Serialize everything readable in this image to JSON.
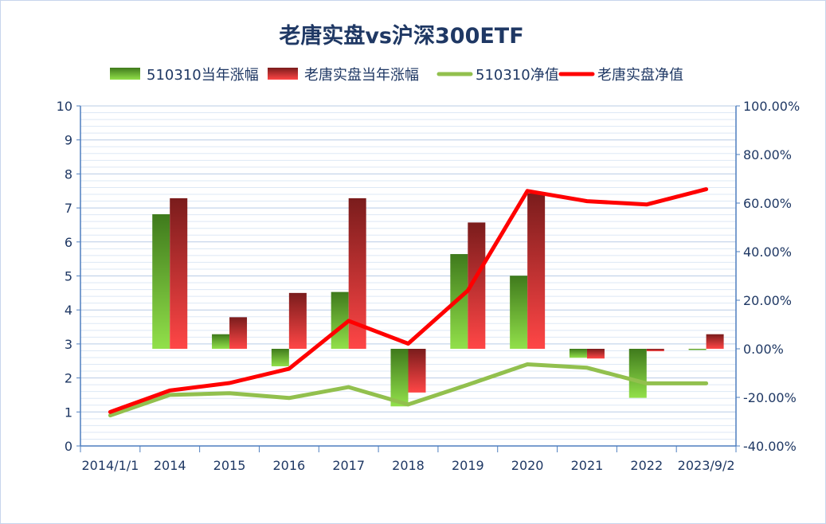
{
  "chart_data": {
    "type": "bar",
    "title": "老唐实盘vs沪深300ETF",
    "categories": [
      "2014/1/1",
      "2014",
      "2015",
      "2016",
      "2017",
      "2018",
      "2019",
      "2020",
      "2021",
      "2022",
      "2023/9/2"
    ],
    "left_axis": {
      "min": 0,
      "max": 10,
      "ticks": [
        "0",
        "1",
        "2",
        "3",
        "4",
        "5",
        "6",
        "7",
        "8",
        "9",
        "10"
      ]
    },
    "right_axis": {
      "min": -0.4,
      "max": 1.0,
      "ticks": [
        "-40.00%",
        "-20.00%",
        "0.00%",
        "20.00%",
        "40.00%",
        "60.00%",
        "80.00%",
        "100.00%"
      ]
    },
    "grid": true,
    "legend_position": "top",
    "series": [
      {
        "name": "510310当年涨幅",
        "type": "bar",
        "axis": "right",
        "color_top": "#3f7a1c",
        "color_bottom": "#92e04a",
        "values": [
          null,
          0.554,
          0.06,
          -0.072,
          0.234,
          -0.237,
          0.39,
          0.301,
          -0.037,
          -0.202,
          -0.005
        ]
      },
      {
        "name": "老唐实盘当年涨幅",
        "type": "bar",
        "axis": "right",
        "color_top": "#7a1c1c",
        "color_bottom": "#ff4646",
        "values": [
          null,
          0.62,
          0.13,
          0.23,
          0.62,
          -0.18,
          0.52,
          0.64,
          -0.04,
          -0.01,
          0.06
        ]
      },
      {
        "name": "510310净值",
        "type": "line",
        "axis": "left",
        "color": "#92c04e",
        "values": [
          0.9,
          1.5,
          1.55,
          1.41,
          1.73,
          1.22,
          1.8,
          2.4,
          2.3,
          1.84,
          1.84
        ]
      },
      {
        "name": "老唐实盘净值",
        "type": "line",
        "axis": "left",
        "color": "#ff0000",
        "values": [
          1.0,
          1.63,
          1.85,
          2.27,
          3.68,
          3.01,
          4.57,
          7.5,
          7.2,
          7.1,
          7.55
        ]
      }
    ]
  }
}
